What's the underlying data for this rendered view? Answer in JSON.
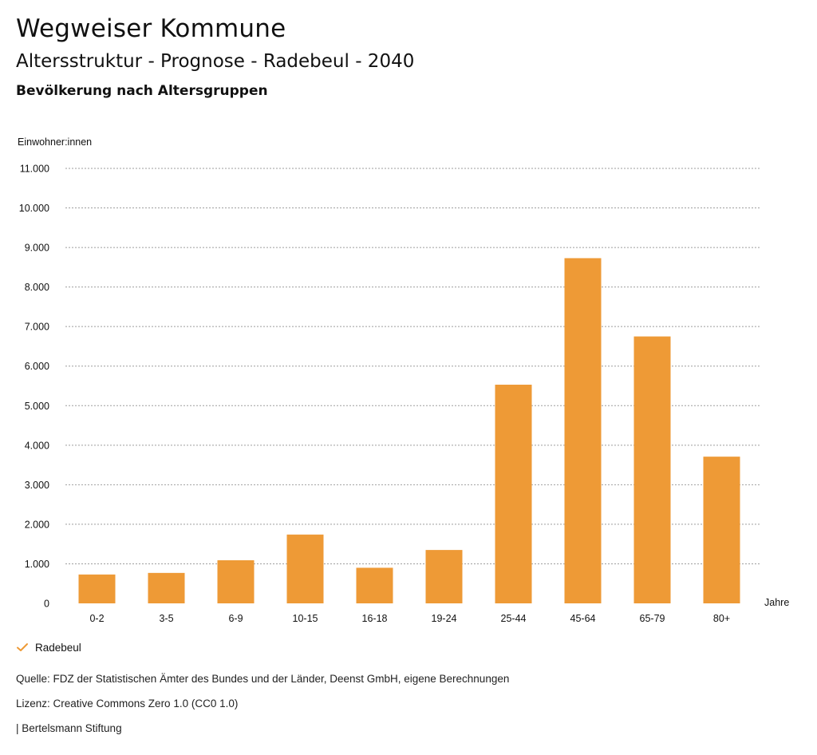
{
  "header": {
    "title": "Wegweiser Kommune",
    "subtitle": "Altersstruktur - Prognose - Radebeul - 2040",
    "section_title": "Bevölkerung nach Altersgruppen"
  },
  "colors": {
    "bar": "#ee9a36",
    "grid": "#9e9e9e"
  },
  "chart_data": {
    "type": "bar",
    "title": "Bevölkerung nach Altersgruppen",
    "ylabel": "Einwohner:innen",
    "xlabel": "Jahre",
    "categories": [
      "0-2",
      "3-5",
      "6-9",
      "10-15",
      "16-18",
      "19-24",
      "25-44",
      "45-64",
      "65-79",
      "80+"
    ],
    "series": [
      {
        "name": "Radebeul",
        "values": [
          730,
          770,
          1090,
          1740,
          900,
          1350,
          5530,
          8730,
          6750,
          3710
        ]
      }
    ],
    "ylim": [
      0,
      11000
    ],
    "yticks": [
      0,
      1000,
      2000,
      3000,
      4000,
      5000,
      6000,
      7000,
      8000,
      9000,
      10000,
      11000
    ],
    "ytick_labels": [
      "0",
      "1.000",
      "2.000",
      "3.000",
      "4.000",
      "5.000",
      "6.000",
      "7.000",
      "8.000",
      "9.000",
      "10.000",
      "11.000"
    ],
    "grid": true,
    "grid_style": "dotted",
    "legend_position": "bottom-left"
  },
  "legend": {
    "label": "Radebeul",
    "icon": "check-icon"
  },
  "footer": {
    "source": "Quelle: FDZ der Statistischen Ämter des Bundes und der Länder, Deenst GmbH, eigene Berechnungen",
    "license": "Lizenz: Creative Commons Zero 1.0 (CC0 1.0)",
    "publisher": "| Bertelsmann Stiftung"
  }
}
